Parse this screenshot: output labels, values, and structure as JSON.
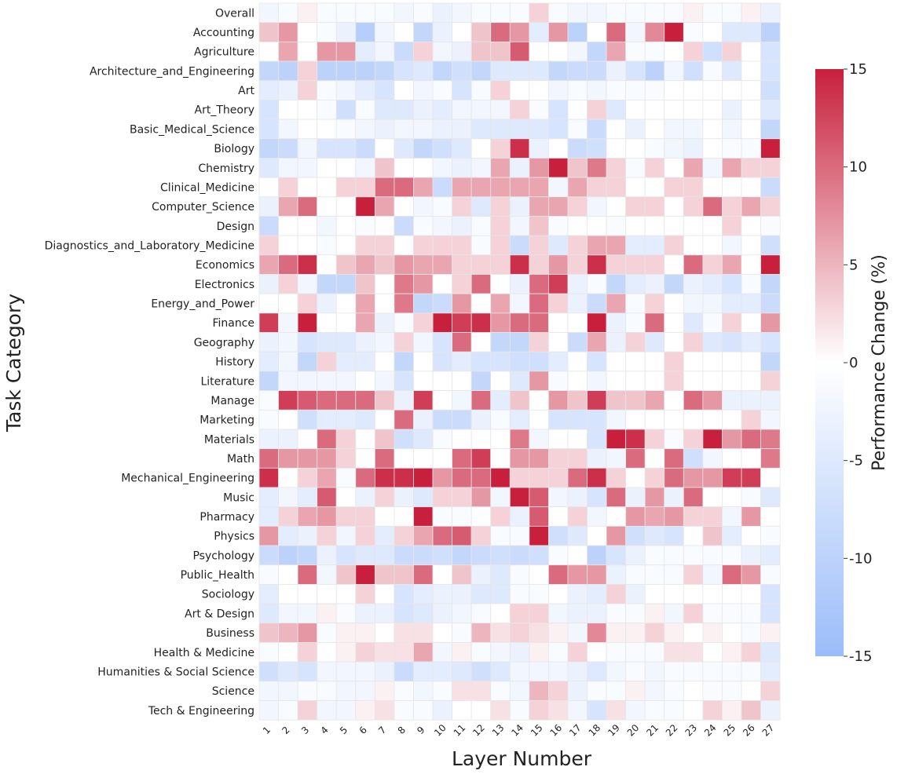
{
  "chart_data": {
    "type": "heatmap",
    "xlabel": "Layer Number",
    "ylabel": "Task Category",
    "colorbar_label": "Performance Change (%)",
    "colorbar_range": [
      -15,
      15
    ],
    "colorbar_ticks": [
      15,
      10,
      5,
      0,
      -5,
      -10,
      -15
    ],
    "colors": {
      "negative": "#9bbcf9",
      "zero": "#ffffff",
      "positive": "#c8203c"
    },
    "layers": [
      "1",
      "2",
      "3",
      "4",
      "5",
      "6",
      "7",
      "8",
      "9",
      "10",
      "11",
      "12",
      "13",
      "14",
      "15",
      "16",
      "17",
      "18",
      "19",
      "20",
      "21",
      "22",
      "23",
      "24",
      "25",
      "26",
      "27"
    ],
    "categories": [
      {
        "name": "Overall",
        "values": [
          -2,
          -1,
          1,
          -1,
          -1,
          -1,
          -1,
          -2,
          -1,
          -3,
          -2,
          -1,
          -1,
          -1,
          3,
          -1,
          -2,
          -2,
          -1,
          -1,
          -1,
          -1,
          1,
          -1,
          -1,
          1,
          -3
        ]
      },
      {
        "name": "Accounting",
        "values": [
          4,
          7,
          0,
          -1,
          -3,
          -11,
          -2,
          0,
          -9,
          -3,
          0,
          4,
          10,
          7,
          -4,
          7,
          -10,
          0,
          10,
          -2,
          8,
          15,
          -1,
          0,
          -5,
          -5,
          -10
        ]
      },
      {
        "name": "Agriculture",
        "values": [
          0,
          6,
          0,
          7,
          7,
          -4,
          -2,
          -8,
          3,
          -2,
          -3,
          4,
          4,
          11,
          0,
          0,
          -2,
          -9,
          6,
          -1,
          -1,
          0,
          3,
          -7,
          3,
          0,
          -6
        ]
      },
      {
        "name": "Architecture_and_Engineering",
        "values": [
          -9,
          -10,
          3,
          -10,
          -10,
          -10,
          -9,
          -6,
          -5,
          -9,
          -7,
          -9,
          -5,
          -5,
          -5,
          -9,
          -8,
          -8,
          -3,
          -6,
          -10,
          -2,
          -7,
          -1,
          -5,
          0,
          -6
        ]
      },
      {
        "name": "Art",
        "values": [
          -4,
          -3,
          3,
          -1,
          -2,
          -4,
          -6,
          0,
          -2,
          -1,
          -6,
          -1,
          3,
          0,
          0,
          -2,
          -1,
          -2,
          -1,
          -1,
          -1,
          0,
          0,
          0,
          0,
          0,
          -7
        ]
      },
      {
        "name": "Art_Theory",
        "values": [
          -6,
          0,
          0,
          -1,
          -7,
          -1,
          -5,
          -5,
          -3,
          -4,
          -2,
          -2,
          -2,
          3,
          -1,
          -6,
          0,
          3,
          -5,
          0,
          0,
          0,
          0,
          0,
          -3,
          0,
          -5
        ]
      },
      {
        "name": "Basic_Medical_Science",
        "values": [
          -6,
          -2,
          0,
          0,
          -1,
          -2,
          -3,
          -2,
          -2,
          -3,
          -3,
          -5,
          -5,
          -5,
          -5,
          -6,
          -1,
          -8,
          0,
          -3,
          0,
          -2,
          -2,
          0,
          -2,
          0,
          -9
        ]
      },
      {
        "name": "Biology",
        "values": [
          -9,
          -8,
          -2,
          -6,
          -6,
          -8,
          0,
          -5,
          -9,
          -7,
          -5,
          0,
          3,
          14,
          -3,
          0,
          -8,
          -7,
          0,
          0,
          -1,
          -2,
          -3,
          0,
          -1,
          -1,
          15
        ]
      },
      {
        "name": "Chemistry",
        "values": [
          -5,
          -2,
          -2,
          0,
          0,
          -2,
          4,
          0,
          0,
          -2,
          -3,
          -2,
          6,
          -3,
          7,
          15,
          4,
          9,
          3,
          -1,
          3,
          0,
          6,
          -2,
          6,
          3,
          3
        ]
      },
      {
        "name": "Clinical_Medicine",
        "values": [
          0,
          3,
          0,
          0,
          3,
          3,
          10,
          10,
          6,
          -8,
          6,
          6,
          6,
          6,
          6,
          -2,
          6,
          3,
          3,
          0,
          0,
          3,
          3,
          0,
          0,
          0,
          -8
        ]
      },
      {
        "name": "Computer_Science",
        "values": [
          -3,
          6,
          10,
          0,
          0,
          15,
          6,
          0,
          -2,
          -1,
          3,
          -5,
          3,
          -3,
          6,
          6,
          3,
          -2,
          0,
          3,
          3,
          0,
          3,
          10,
          3,
          6,
          3
        ]
      },
      {
        "name": "Design",
        "values": [
          -8,
          0,
          0,
          -2,
          0,
          -1,
          0,
          -8,
          -1,
          -2,
          -3,
          -1,
          3,
          -2,
          4,
          -1,
          0,
          0,
          -1,
          0,
          0,
          0,
          0,
          0,
          3,
          0,
          -1
        ]
      },
      {
        "name": "Diagnostics_and_Laboratory_Medicine",
        "values": [
          3,
          0,
          0,
          -1,
          0,
          3,
          3,
          0,
          3,
          3,
          3,
          -1,
          3,
          -8,
          3,
          -5,
          3,
          6,
          6,
          -4,
          -4,
          3,
          0,
          0,
          -2,
          0,
          -7
        ]
      },
      {
        "name": "Economics",
        "values": [
          6,
          10,
          14,
          0,
          4,
          6,
          4,
          7,
          6,
          6,
          3,
          3,
          3,
          14,
          3,
          7,
          3,
          14,
          3,
          3,
          3,
          0,
          10,
          3,
          6,
          0,
          15
        ]
      },
      {
        "name": "Electronics",
        "values": [
          -3,
          3,
          -2,
          -9,
          -9,
          4,
          0,
          9,
          7,
          0,
          3,
          10,
          0,
          -3,
          10,
          13,
          -3,
          -1,
          -9,
          -4,
          -3,
          -9,
          -3,
          -4,
          -6,
          -1,
          -9
        ]
      },
      {
        "name": "Energy_and_Power",
        "values": [
          0,
          0,
          3,
          -3,
          0,
          6,
          0,
          9,
          -9,
          -8,
          7,
          0,
          6,
          -2,
          10,
          3,
          -3,
          -8,
          6,
          -1,
          3,
          0,
          -2,
          -2,
          -4,
          -4,
          -8
        ]
      },
      {
        "name": "Finance",
        "values": [
          13,
          -2,
          15,
          0,
          0,
          6,
          -3,
          -1,
          3,
          15,
          13,
          14,
          7,
          10,
          10,
          0,
          0,
          15,
          -3,
          -1,
          10,
          0,
          -5,
          -1,
          3,
          0,
          7
        ]
      },
      {
        "name": "Geography",
        "values": [
          -3,
          -2,
          -6,
          -5,
          -5,
          -3,
          -2,
          3,
          -2,
          -6,
          10,
          0,
          -9,
          -9,
          3,
          0,
          -8,
          6,
          -3,
          3,
          -5,
          0,
          3,
          -5,
          -6,
          -4,
          -6
        ]
      },
      {
        "name": "History",
        "values": [
          -4,
          -2,
          -9,
          3,
          -4,
          -4,
          0,
          -9,
          0,
          -6,
          -4,
          -6,
          -6,
          -7,
          -7,
          -4,
          0,
          -6,
          0,
          0,
          0,
          3,
          0,
          0,
          0,
          0,
          -9
        ]
      },
      {
        "name": "Literature",
        "values": [
          -9,
          -2,
          -2,
          -2,
          -2,
          0,
          -2,
          -6,
          0,
          0,
          0,
          -9,
          0,
          -5,
          7,
          -1,
          0,
          -2,
          0,
          0,
          0,
          3,
          0,
          0,
          0,
          0,
          3
        ]
      },
      {
        "name": "Manage",
        "values": [
          -1,
          13,
          11,
          10,
          10,
          10,
          4,
          -3,
          13,
          0,
          -2,
          10,
          -4,
          4,
          0,
          7,
          4,
          13,
          4,
          4,
          6,
          0,
          10,
          7,
          -3,
          -3,
          -3
        ]
      },
      {
        "name": "Marketing",
        "values": [
          -1,
          0,
          -7,
          -4,
          -4,
          -5,
          0,
          10,
          -3,
          -8,
          -8,
          -3,
          -1,
          -4,
          0,
          -6,
          -6,
          -6,
          -2,
          0,
          0,
          0,
          0,
          0,
          0,
          3,
          -2
        ]
      },
      {
        "name": "Materials",
        "values": [
          -3,
          -3,
          0,
          10,
          3,
          0,
          4,
          -7,
          -5,
          -1,
          0,
          0,
          0,
          9,
          -2,
          0,
          0,
          -6,
          15,
          14,
          3,
          -1,
          3,
          15,
          7,
          10,
          9
        ]
      },
      {
        "name": "Math",
        "values": [
          10,
          7,
          7,
          7,
          3,
          0,
          10,
          0,
          0,
          0,
          10,
          13,
          0,
          7,
          7,
          3,
          3,
          -3,
          -2,
          10,
          0,
          10,
          -7,
          -2,
          0,
          0,
          9
        ]
      },
      {
        "name": "Mechanical_Engineering",
        "values": [
          14,
          0,
          3,
          6,
          -1,
          10,
          14,
          14,
          15,
          7,
          10,
          10,
          15,
          3,
          3,
          3,
          10,
          14,
          3,
          0,
          3,
          10,
          7,
          7,
          13,
          13,
          0
        ]
      },
      {
        "name": "Music",
        "values": [
          -4,
          -2,
          -4,
          11,
          0,
          -3,
          3,
          -3,
          -5,
          3,
          3,
          7,
          -2,
          15,
          11,
          -2,
          -3,
          -6,
          10,
          -3,
          7,
          -3,
          10,
          0,
          0,
          -1,
          -5
        ]
      },
      {
        "name": "Pharmacy",
        "values": [
          -4,
          3,
          6,
          7,
          3,
          3,
          0,
          0,
          15,
          -1,
          -1,
          0,
          3,
          -3,
          11,
          0,
          3,
          -2,
          0,
          7,
          6,
          7,
          3,
          3,
          -2,
          7,
          0
        ]
      },
      {
        "name": "Physics",
        "values": [
          7,
          -4,
          -3,
          3,
          -2,
          3,
          -4,
          3,
          6,
          10,
          11,
          3,
          -1,
          -1,
          15,
          -7,
          -5,
          0,
          7,
          -7,
          -5,
          -6,
          0,
          4,
          -4,
          0,
          -1
        ]
      },
      {
        "name": "Psychology",
        "values": [
          -8,
          -10,
          -9,
          -3,
          -6,
          -5,
          -5,
          -8,
          -8,
          -7,
          -9,
          -8,
          -7,
          -8,
          -7,
          -1,
          0,
          -10,
          -6,
          -3,
          -1,
          -1,
          -1,
          -1,
          -1,
          -3,
          -4
        ]
      },
      {
        "name": "Public_Health",
        "values": [
          -1,
          0,
          10,
          -2,
          4,
          15,
          4,
          4,
          10,
          0,
          4,
          -3,
          -5,
          -1,
          0,
          10,
          7,
          7,
          -3,
          -1,
          -1,
          -1,
          3,
          -2,
          10,
          7,
          -1
        ]
      },
      {
        "name": "Sociology",
        "values": [
          -4,
          0,
          0,
          0,
          0,
          3,
          0,
          -6,
          -4,
          -3,
          -3,
          -5,
          -5,
          -1,
          -1,
          0,
          -3,
          -4,
          3,
          -3,
          0,
          0,
          0,
          0,
          0,
          0,
          -6
        ]
      },
      {
        "name": "Art & Design",
        "values": [
          -5,
          -2,
          -2,
          1,
          -1,
          -3,
          -3,
          -6,
          -5,
          -3,
          -2,
          -1,
          0,
          3,
          3,
          -2,
          -3,
          -3,
          -1,
          -1,
          1,
          -2,
          3,
          -1,
          -1,
          -1,
          -6
        ]
      },
      {
        "name": "Business",
        "values": [
          4,
          5,
          7,
          -1,
          1,
          1,
          0,
          2,
          2,
          0,
          -1,
          5,
          2,
          3,
          2,
          1,
          -2,
          8,
          1,
          1,
          3,
          1,
          0,
          1,
          0,
          -1,
          1
        ]
      },
      {
        "name": "Health & Medicine",
        "values": [
          -1,
          0,
          3,
          0,
          1,
          3,
          2,
          2,
          6,
          -2,
          1,
          -1,
          -2,
          -3,
          1,
          -1,
          3,
          0,
          -1,
          -1,
          -1,
          2,
          2,
          0,
          1,
          3,
          -5
        ]
      },
      {
        "name": "Humanities & Social Science",
        "values": [
          -7,
          -5,
          -6,
          -2,
          -2,
          -2,
          -3,
          -8,
          -4,
          -4,
          -5,
          -7,
          -5,
          -2,
          -2,
          -2,
          -3,
          -5,
          -2,
          -1,
          -2,
          -1,
          -1,
          -1,
          -1,
          -1,
          -4
        ]
      },
      {
        "name": "Science",
        "values": [
          -2,
          -2,
          -1,
          -1,
          -2,
          -2,
          1,
          -1,
          -2,
          -1,
          2,
          2,
          -1,
          -2,
          5,
          3,
          -3,
          -1,
          -1,
          1,
          -2,
          -1,
          0,
          -1,
          -1,
          0,
          3
        ]
      },
      {
        "name": "Tech & Engineering",
        "values": [
          -2,
          -1,
          3,
          -2,
          -2,
          1,
          2,
          -1,
          -1,
          -3,
          0,
          0,
          2,
          -1,
          3,
          2,
          -2,
          -6,
          2,
          -2,
          -1,
          -1,
          0,
          3,
          1,
          4,
          -3
        ]
      }
    ]
  }
}
